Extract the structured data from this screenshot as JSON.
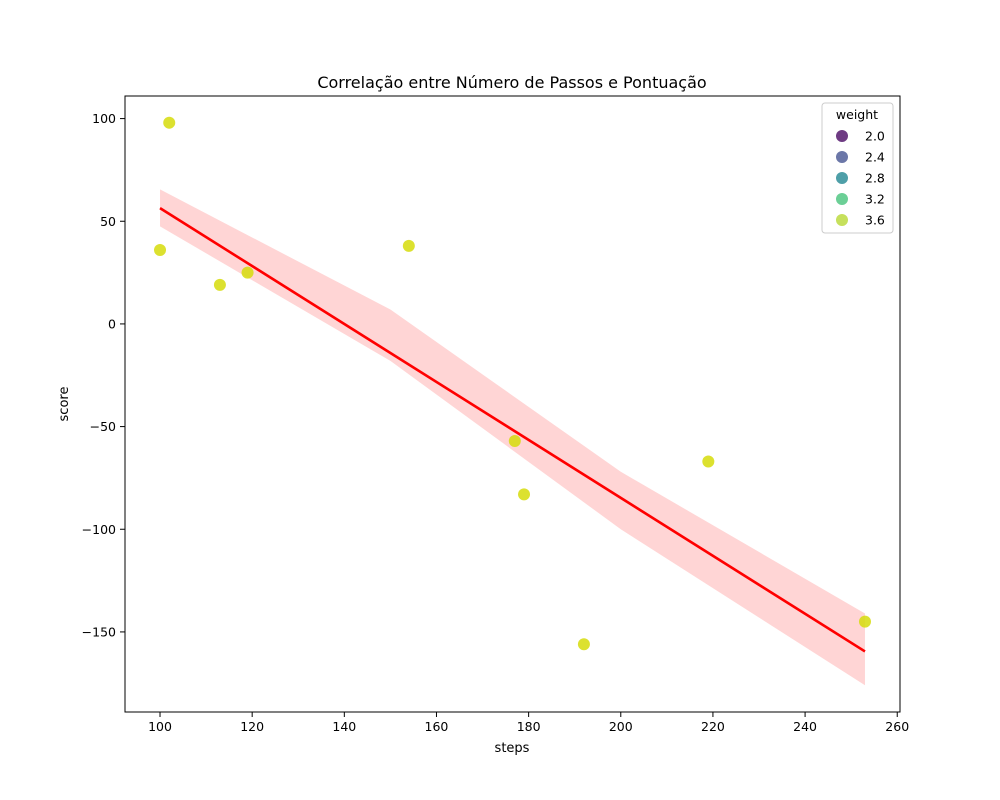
{
  "chart_data": {
    "type": "scatter",
    "title": "Correlação entre Número de Passos e Pontuação",
    "xlabel": "steps",
    "ylabel": "score",
    "xlim": [
      92.4,
      260.6
    ],
    "ylim": [
      -189,
      111
    ],
    "x_ticks": [
      100,
      120,
      140,
      160,
      180,
      200,
      220,
      240,
      260
    ],
    "x_tick_labels": [
      "100",
      "120",
      "140",
      "160",
      "180",
      "200",
      "220",
      "240",
      "260"
    ],
    "y_ticks": [
      100,
      50,
      0,
      -50,
      -100,
      -150
    ],
    "y_tick_labels": [
      "100",
      "50",
      "0",
      "−50",
      "−100",
      "−150"
    ],
    "grid": false,
    "point_color": "#d6dc0a",
    "points": [
      {
        "x": 100,
        "y": 36
      },
      {
        "x": 102,
        "y": 98
      },
      {
        "x": 113,
        "y": 19
      },
      {
        "x": 119,
        "y": 25
      },
      {
        "x": 154,
        "y": 38
      },
      {
        "x": 177,
        "y": -57
      },
      {
        "x": 179,
        "y": -83
      },
      {
        "x": 192,
        "y": -156
      },
      {
        "x": 219,
        "y": -67
      },
      {
        "x": 253,
        "y": -145
      }
    ],
    "regression": {
      "color": "#ff0000",
      "band_color": "#ffb3b3",
      "line": [
        [
          100,
          56.4
        ],
        [
          253,
          -159.5
        ]
      ],
      "band_upper": [
        [
          100,
          65.5
        ],
        [
          150,
          7
        ],
        [
          200,
          -72
        ],
        [
          253,
          -141
        ]
      ],
      "band_lower": [
        [
          100,
          47.5
        ],
        [
          150,
          -18
        ],
        [
          200,
          -100
        ],
        [
          253,
          -176
        ]
      ]
    },
    "legend": {
      "title": "weight",
      "position": "top-right",
      "entries": [
        {
          "label": "2.0",
          "color": "#6e3b83"
        },
        {
          "label": "2.4",
          "color": "#6b77a8"
        },
        {
          "label": "2.8",
          "color": "#4e9fa8"
        },
        {
          "label": "3.2",
          "color": "#6bcf96"
        },
        {
          "label": "3.6",
          "color": "#c6e05c"
        }
      ]
    }
  }
}
